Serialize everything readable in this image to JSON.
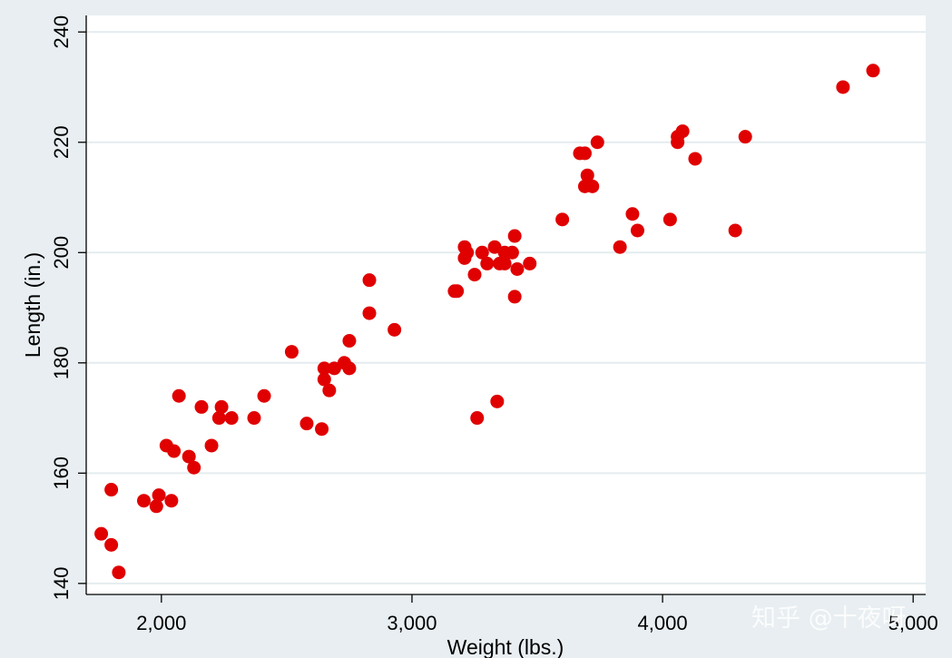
{
  "chart_data": {
    "type": "scatter",
    "xlabel": "Weight (lbs.)",
    "ylabel": "Length (in.)",
    "xlim": [
      1700,
      5050
    ],
    "ylim": [
      138,
      243
    ],
    "x_ticks": [
      2000,
      3000,
      4000,
      5000
    ],
    "x_tick_labels": [
      "2,000",
      "3,000",
      "4,000",
      "5,000"
    ],
    "y_ticks": [
      140,
      160,
      180,
      200,
      220,
      240
    ],
    "y_tick_labels": [
      "140",
      "160",
      "180",
      "200",
      "220",
      "240"
    ],
    "grid": "horizontal",
    "marker_color": "#e00000",
    "plot_background": "#ffffff",
    "figure_background": "#e8eef1",
    "points": [
      {
        "x": 1760,
        "y": 149
      },
      {
        "x": 1800,
        "y": 157
      },
      {
        "x": 1800,
        "y": 147
      },
      {
        "x": 1830,
        "y": 142
      },
      {
        "x": 1930,
        "y": 155
      },
      {
        "x": 1980,
        "y": 154
      },
      {
        "x": 1990,
        "y": 156
      },
      {
        "x": 2020,
        "y": 165
      },
      {
        "x": 2040,
        "y": 155
      },
      {
        "x": 2050,
        "y": 164
      },
      {
        "x": 2070,
        "y": 174
      },
      {
        "x": 2110,
        "y": 163
      },
      {
        "x": 2130,
        "y": 161
      },
      {
        "x": 2160,
        "y": 172
      },
      {
        "x": 2200,
        "y": 165
      },
      {
        "x": 2230,
        "y": 170
      },
      {
        "x": 2240,
        "y": 172
      },
      {
        "x": 2280,
        "y": 170
      },
      {
        "x": 2370,
        "y": 170
      },
      {
        "x": 2410,
        "y": 174
      },
      {
        "x": 2520,
        "y": 182
      },
      {
        "x": 2580,
        "y": 169
      },
      {
        "x": 2640,
        "y": 168
      },
      {
        "x": 2650,
        "y": 177
      },
      {
        "x": 2650,
        "y": 179
      },
      {
        "x": 2670,
        "y": 175
      },
      {
        "x": 2690,
        "y": 179
      },
      {
        "x": 2730,
        "y": 180
      },
      {
        "x": 2750,
        "y": 179
      },
      {
        "x": 2750,
        "y": 184
      },
      {
        "x": 2830,
        "y": 189
      },
      {
        "x": 2830,
        "y": 195
      },
      {
        "x": 2930,
        "y": 186
      },
      {
        "x": 3170,
        "y": 193
      },
      {
        "x": 3180,
        "y": 193
      },
      {
        "x": 3210,
        "y": 199
      },
      {
        "x": 3210,
        "y": 201
      },
      {
        "x": 3220,
        "y": 200
      },
      {
        "x": 3250,
        "y": 196
      },
      {
        "x": 3260,
        "y": 170
      },
      {
        "x": 3280,
        "y": 200
      },
      {
        "x": 3300,
        "y": 198
      },
      {
        "x": 3330,
        "y": 201
      },
      {
        "x": 3340,
        "y": 173
      },
      {
        "x": 3350,
        "y": 198
      },
      {
        "x": 3370,
        "y": 198
      },
      {
        "x": 3370,
        "y": 200
      },
      {
        "x": 3400,
        "y": 200
      },
      {
        "x": 3410,
        "y": 203
      },
      {
        "x": 3410,
        "y": 192
      },
      {
        "x": 3420,
        "y": 197
      },
      {
        "x": 3470,
        "y": 198
      },
      {
        "x": 3600,
        "y": 206
      },
      {
        "x": 3670,
        "y": 218
      },
      {
        "x": 3690,
        "y": 218
      },
      {
        "x": 3690,
        "y": 212
      },
      {
        "x": 3700,
        "y": 214
      },
      {
        "x": 3720,
        "y": 212
      },
      {
        "x": 3740,
        "y": 220
      },
      {
        "x": 3830,
        "y": 201
      },
      {
        "x": 3880,
        "y": 207
      },
      {
        "x": 3900,
        "y": 204
      },
      {
        "x": 4030,
        "y": 206
      },
      {
        "x": 4060,
        "y": 220
      },
      {
        "x": 4060,
        "y": 221
      },
      {
        "x": 4080,
        "y": 222
      },
      {
        "x": 4130,
        "y": 217
      },
      {
        "x": 4290,
        "y": 204
      },
      {
        "x": 4330,
        "y": 221
      },
      {
        "x": 4720,
        "y": 230
      },
      {
        "x": 4840,
        "y": 233
      }
    ]
  },
  "watermark": {
    "text": "知乎 @十夜呀"
  }
}
